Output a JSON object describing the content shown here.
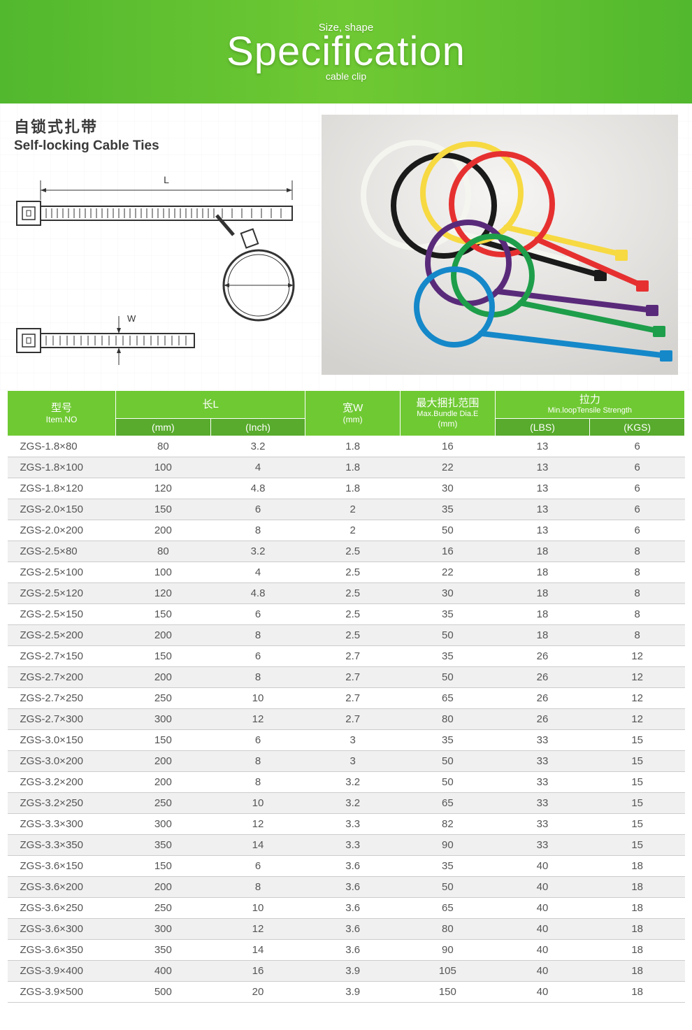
{
  "banner": {
    "top": "Size, shape",
    "main": "Specification",
    "sub": "cable clip",
    "bg_from": "#52b82e",
    "bg_mid": "#6fc933",
    "text_color": "#ffffff"
  },
  "mid": {
    "title_cn": "自锁式扎带",
    "title_en": "Self-locking Cable Ties",
    "dim_L": "L",
    "dim_W": "W"
  },
  "product_colors": [
    "#f5f5f0",
    "#1a1a1a",
    "#f7d942",
    "#e63030",
    "#5a2a7a",
    "#1e9e4a",
    "#1588c9"
  ],
  "table": {
    "header_bg_top": "#6fc933",
    "header_bg_sub": "#58ab2c",
    "header_text": "#ffffff",
    "row_alt_bg": "#f0f0f0",
    "border_color": "#cccccc",
    "columns": {
      "item": {
        "cn": "型号",
        "en": "Item.NO"
      },
      "length": {
        "cn": "长L",
        "mm": "(mm)",
        "inch": "(Inch)"
      },
      "width": {
        "cn": "宽W",
        "en": "(mm)"
      },
      "bundle": {
        "cn": "最大捆扎范围",
        "en": "Max.Bundle Dia.E",
        "unit": "(mm)"
      },
      "tensile": {
        "cn": "拉力",
        "en": "Min.loopTensile Strength",
        "lbs": "(LBS)",
        "kgs": "(KGS)"
      }
    },
    "rows": [
      [
        "ZGS-1.8×80",
        "80",
        "3.2",
        "1.8",
        "16",
        "13",
        "6"
      ],
      [
        "ZGS-1.8×100",
        "100",
        "4",
        "1.8",
        "22",
        "13",
        "6"
      ],
      [
        "ZGS-1.8×120",
        "120",
        "4.8",
        "1.8",
        "30",
        "13",
        "6"
      ],
      [
        "ZGS-2.0×150",
        "150",
        "6",
        "2",
        "35",
        "13",
        "6"
      ],
      [
        "ZGS-2.0×200",
        "200",
        "8",
        "2",
        "50",
        "13",
        "6"
      ],
      [
        "ZGS-2.5×80",
        "80",
        "3.2",
        "2.5",
        "16",
        "18",
        "8"
      ],
      [
        "ZGS-2.5×100",
        "100",
        "4",
        "2.5",
        "22",
        "18",
        "8"
      ],
      [
        "ZGS-2.5×120",
        "120",
        "4.8",
        "2.5",
        "30",
        "18",
        "8"
      ],
      [
        "ZGS-2.5×150",
        "150",
        "6",
        "2.5",
        "35",
        "18",
        "8"
      ],
      [
        "ZGS-2.5×200",
        "200",
        "8",
        "2.5",
        "50",
        "18",
        "8"
      ],
      [
        "ZGS-2.7×150",
        "150",
        "6",
        "2.7",
        "35",
        "26",
        "12"
      ],
      [
        "ZGS-2.7×200",
        "200",
        "8",
        "2.7",
        "50",
        "26",
        "12"
      ],
      [
        "ZGS-2.7×250",
        "250",
        "10",
        "2.7",
        "65",
        "26",
        "12"
      ],
      [
        "ZGS-2.7×300",
        "300",
        "12",
        "2.7",
        "80",
        "26",
        "12"
      ],
      [
        "ZGS-3.0×150",
        "150",
        "6",
        "3",
        "35",
        "33",
        "15"
      ],
      [
        "ZGS-3.0×200",
        "200",
        "8",
        "3",
        "50",
        "33",
        "15"
      ],
      [
        "ZGS-3.2×200",
        "200",
        "8",
        "3.2",
        "50",
        "33",
        "15"
      ],
      [
        "ZGS-3.2×250",
        "250",
        "10",
        "3.2",
        "65",
        "33",
        "15"
      ],
      [
        "ZGS-3.3×300",
        "300",
        "12",
        "3.3",
        "82",
        "33",
        "15"
      ],
      [
        "ZGS-3.3×350",
        "350",
        "14",
        "3.3",
        "90",
        "33",
        "15"
      ],
      [
        "ZGS-3.6×150",
        "150",
        "6",
        "3.6",
        "35",
        "40",
        "18"
      ],
      [
        "ZGS-3.6×200",
        "200",
        "8",
        "3.6",
        "50",
        "40",
        "18"
      ],
      [
        "ZGS-3.6×250",
        "250",
        "10",
        "3.6",
        "65",
        "40",
        "18"
      ],
      [
        "ZGS-3.6×300",
        "300",
        "12",
        "3.6",
        "80",
        "40",
        "18"
      ],
      [
        "ZGS-3.6×350",
        "350",
        "14",
        "3.6",
        "90",
        "40",
        "18"
      ],
      [
        "ZGS-3.9×400",
        "400",
        "16",
        "3.9",
        "105",
        "40",
        "18"
      ],
      [
        "ZGS-3.9×500",
        "500",
        "20",
        "3.9",
        "150",
        "40",
        "18"
      ]
    ]
  }
}
